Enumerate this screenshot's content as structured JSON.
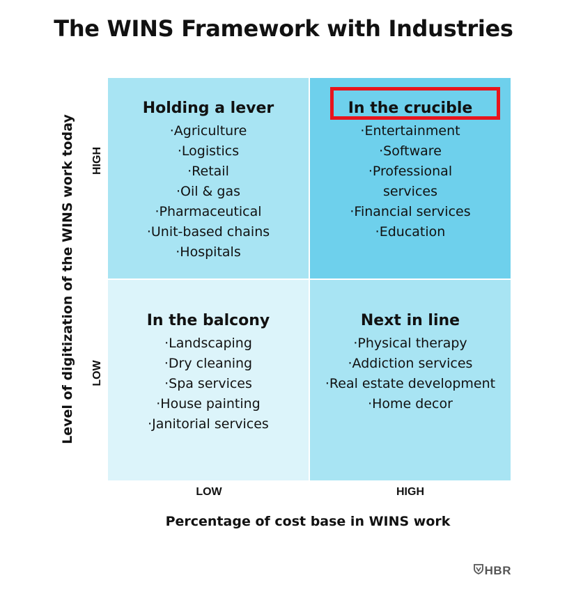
{
  "title": "The WINS Framework with Industries",
  "colors": {
    "quad_holding": "#a8e4f3",
    "quad_crucible": "#6ed0ec",
    "quad_balcony": "#dcf4fa",
    "quad_next": "#a8e4f3",
    "highlight": "#e8141c"
  },
  "axes": {
    "y_label": "Level of digitization of the WINS work today",
    "y_high": "HIGH",
    "y_low": "LOW",
    "x_label": "Percentage of cost base in WINS work",
    "x_low": "LOW",
    "x_high": "HIGH"
  },
  "quadrants": {
    "holding": {
      "title": "Holding a lever",
      "items": [
        "·Agriculture",
        "·Logistics",
        "·Retail",
        "·Oil & gas",
        "·Pharmaceutical",
        "·Unit-based chains",
        "·Hospitals"
      ]
    },
    "crucible": {
      "title": "In the crucible",
      "items": [
        "·Entertainment",
        "·Software",
        "·Professional services",
        "·Financial services",
        "·Education"
      ]
    },
    "balcony": {
      "title": "In the balcony",
      "items": [
        "·Landscaping",
        "·Dry cleaning",
        "·Spa services",
        "·House painting",
        "·Janitorial services"
      ]
    },
    "next": {
      "title": "Next in line",
      "items": [
        "·Physical therapy",
        "·Addiction services",
        "·Real estate development",
        "·Home decor"
      ]
    }
  },
  "logo": {
    "text": "HBR",
    "icon": "shield-icon"
  }
}
